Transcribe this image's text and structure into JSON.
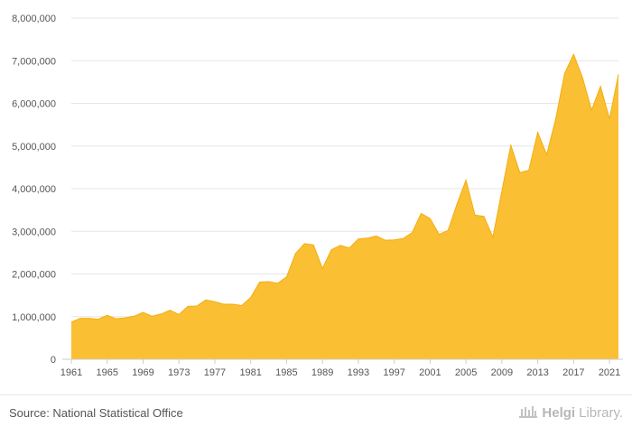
{
  "chart_data": {
    "type": "area",
    "title": "",
    "xlabel": "",
    "ylabel": "",
    "x": [
      1961,
      1962,
      1963,
      1964,
      1965,
      1966,
      1967,
      1968,
      1969,
      1970,
      1971,
      1972,
      1973,
      1974,
      1975,
      1976,
      1977,
      1978,
      1979,
      1980,
      1981,
      1982,
      1983,
      1984,
      1985,
      1986,
      1987,
      1988,
      1989,
      1990,
      1991,
      1992,
      1993,
      1994,
      1995,
      1996,
      1997,
      1998,
      1999,
      2000,
      2001,
      2002,
      2003,
      2004,
      2005,
      2006,
      2007,
      2008,
      2009,
      2010,
      2011,
      2012,
      2013,
      2014,
      2015,
      2016,
      2017,
      2018,
      2019,
      2020,
      2021,
      2022
    ],
    "values": [
      870000,
      960000,
      960000,
      940000,
      1030000,
      950000,
      970000,
      1010000,
      1100000,
      1010000,
      1060000,
      1150000,
      1050000,
      1240000,
      1250000,
      1390000,
      1350000,
      1290000,
      1290000,
      1260000,
      1450000,
      1810000,
      1820000,
      1780000,
      1930000,
      2480000,
      2710000,
      2680000,
      2130000,
      2570000,
      2670000,
      2610000,
      2820000,
      2840000,
      2890000,
      2790000,
      2800000,
      2830000,
      2970000,
      3420000,
      3300000,
      2930000,
      3020000,
      3640000,
      4200000,
      3380000,
      3350000,
      2860000,
      3940000,
      5020000,
      4380000,
      4430000,
      5320000,
      4800000,
      5630000,
      6700000,
      7150000,
      6600000,
      5840000,
      6400000,
      5640000,
      6680000
    ],
    "xlim": [
      1961,
      2022
    ],
    "ylim": [
      0,
      8000000
    ],
    "yticks": [
      0,
      1000000,
      2000000,
      3000000,
      4000000,
      5000000,
      6000000,
      7000000,
      8000000
    ],
    "ytick_labels": [
      "0",
      "1,000,000",
      "2,000,000",
      "3,000,000",
      "4,000,000",
      "5,000,000",
      "6,000,000",
      "7,000,000",
      "8,000,000"
    ],
    "xticks": [
      1961,
      1965,
      1969,
      1973,
      1977,
      1981,
      1985,
      1989,
      1993,
      1997,
      2001,
      2005,
      2009,
      2013,
      2017,
      2021
    ],
    "grid": true,
    "colors": {
      "fill": "#FBBF34",
      "stroke": "#F2AE10",
      "grid": "#e6e6e6",
      "axis": "#cccccc"
    }
  },
  "footer": {
    "source": "Source: National Statistical Office",
    "brand_strong": "Helgi",
    "brand_light": "Library."
  }
}
